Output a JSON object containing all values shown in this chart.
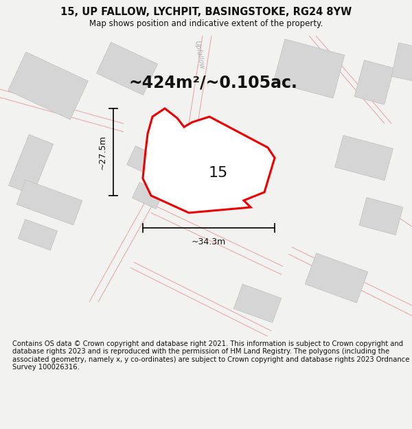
{
  "title": "15, UP FALLOW, LYCHPIT, BASINGSTOKE, RG24 8YW",
  "subtitle": "Map shows position and indicative extent of the property.",
  "area_text": "~424m²/~0.105ac.",
  "label_15": "15",
  "dim_width": "~34.3m",
  "dim_height": "~27.5m",
  "street_label": "Upfallow",
  "footer": "Contains OS data © Crown copyright and database right 2021. This information is subject to Crown copyright and database rights 2023 and is reproduced with the permission of HM Land Registry. The polygons (including the associated geometry, namely x, y co-ordinates) are subject to Crown copyright and database rights 2023 Ordnance Survey 100026316.",
  "bg_color": "#f2f2f0",
  "map_bg": "#f8f8f5",
  "plot_color": "#ee0000",
  "plot_fill": "#ffffff",
  "building_color": "#d5d5d5",
  "building_edge": "#c0c0c0",
  "road_line_color": "#e8aaaa",
  "title_fontsize": 10.5,
  "subtitle_fontsize": 8.5,
  "area_fontsize": 17,
  "footer_fontsize": 7.2,
  "label_fontsize": 16,
  "dim_fontsize": 9
}
